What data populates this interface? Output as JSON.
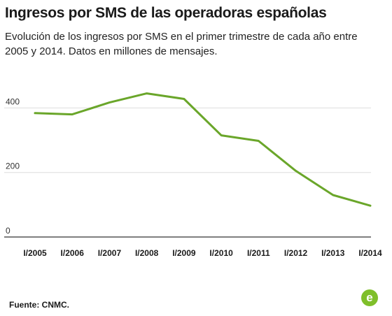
{
  "header": {
    "title": "Ingresos por SMS de las operadoras españolas",
    "subtitle": "Evolución de los ingresos por SMS en el primer trimestre de cada año entre 2005 y 2014. Datos en millones de mensajes."
  },
  "footer": {
    "source": "Fuente: CNMC.",
    "logo_letter": "e"
  },
  "colors": {
    "line": "#6aa62a",
    "grid": "#dddddd",
    "logo": "#7fbf2a"
  },
  "chart_data": {
    "type": "line",
    "categories": [
      "I/2005",
      "I/2006",
      "I/2007",
      "I/2008",
      "I/2009",
      "I/2010",
      "I/2011",
      "I/2012",
      "I/2013",
      "I/2014"
    ],
    "series": [
      {
        "values": [
          384,
          380,
          417,
          445,
          428,
          315,
          298,
          205,
          130,
          97
        ]
      }
    ],
    "yticks": [
      0,
      200,
      400
    ],
    "ylim": [
      0,
      470
    ],
    "grid": true,
    "title": "Ingresos por SMS de las operadoras españolas",
    "xlabel": "",
    "ylabel": ""
  }
}
